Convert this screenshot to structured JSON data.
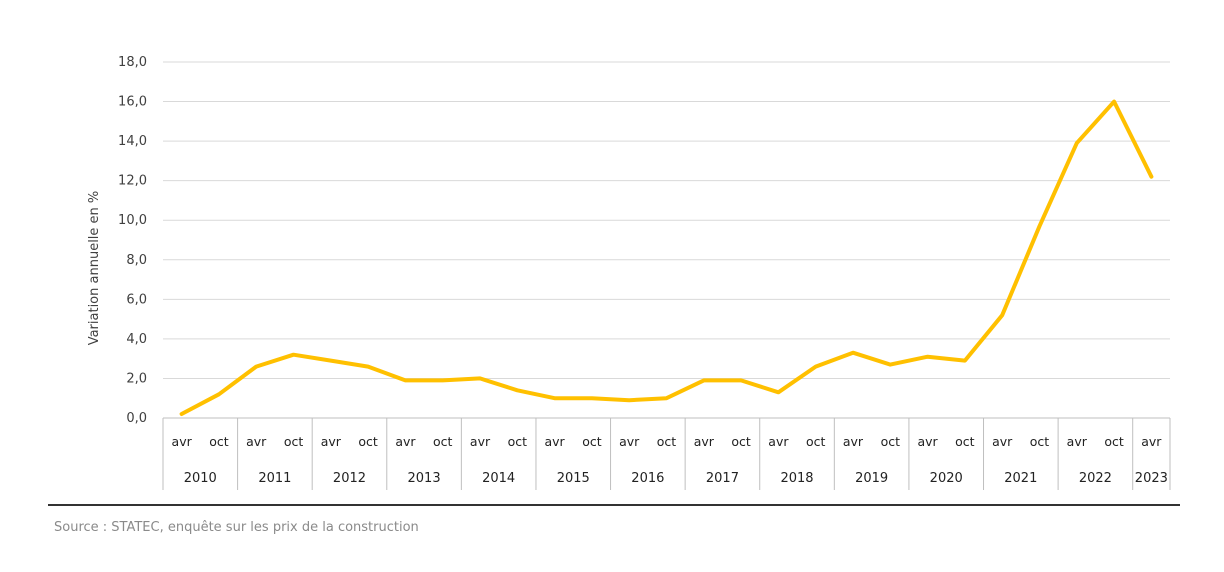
{
  "chart_data": {
    "type": "line",
    "ylabel": "Variation annuelle en %",
    "ylim": [
      0,
      18
    ],
    "yticks": [
      "0,0",
      "2,0",
      "4,0",
      "6,0",
      "8,0",
      "10,0",
      "12,0",
      "14,0",
      "16,0",
      "18,0"
    ],
    "grid": true,
    "years": [
      "2010",
      "2011",
      "2012",
      "2013",
      "2014",
      "2015",
      "2016",
      "2017",
      "2018",
      "2019",
      "2020",
      "2021",
      "2022",
      "2023"
    ],
    "categories": [
      "avr",
      "oct",
      "avr",
      "oct",
      "avr",
      "oct",
      "avr",
      "oct",
      "avr",
      "oct",
      "avr",
      "oct",
      "avr",
      "oct",
      "avr",
      "oct",
      "avr",
      "oct",
      "avr",
      "oct",
      "avr",
      "oct",
      "avr",
      "oct",
      "avr",
      "oct",
      "avr"
    ],
    "series": [
      {
        "color": "#FFC000",
        "values": [
          0.2,
          1.2,
          2.6,
          3.2,
          2.9,
          2.6,
          1.9,
          1.9,
          2.0,
          1.4,
          1.0,
          1.0,
          0.9,
          1.0,
          1.9,
          1.9,
          1.3,
          2.6,
          3.3,
          2.7,
          3.1,
          2.9,
          5.2,
          9.7,
          13.9,
          16.0,
          12.2
        ]
      }
    ]
  },
  "source": "Source : STATEC, enquête sur les prix de la construction"
}
